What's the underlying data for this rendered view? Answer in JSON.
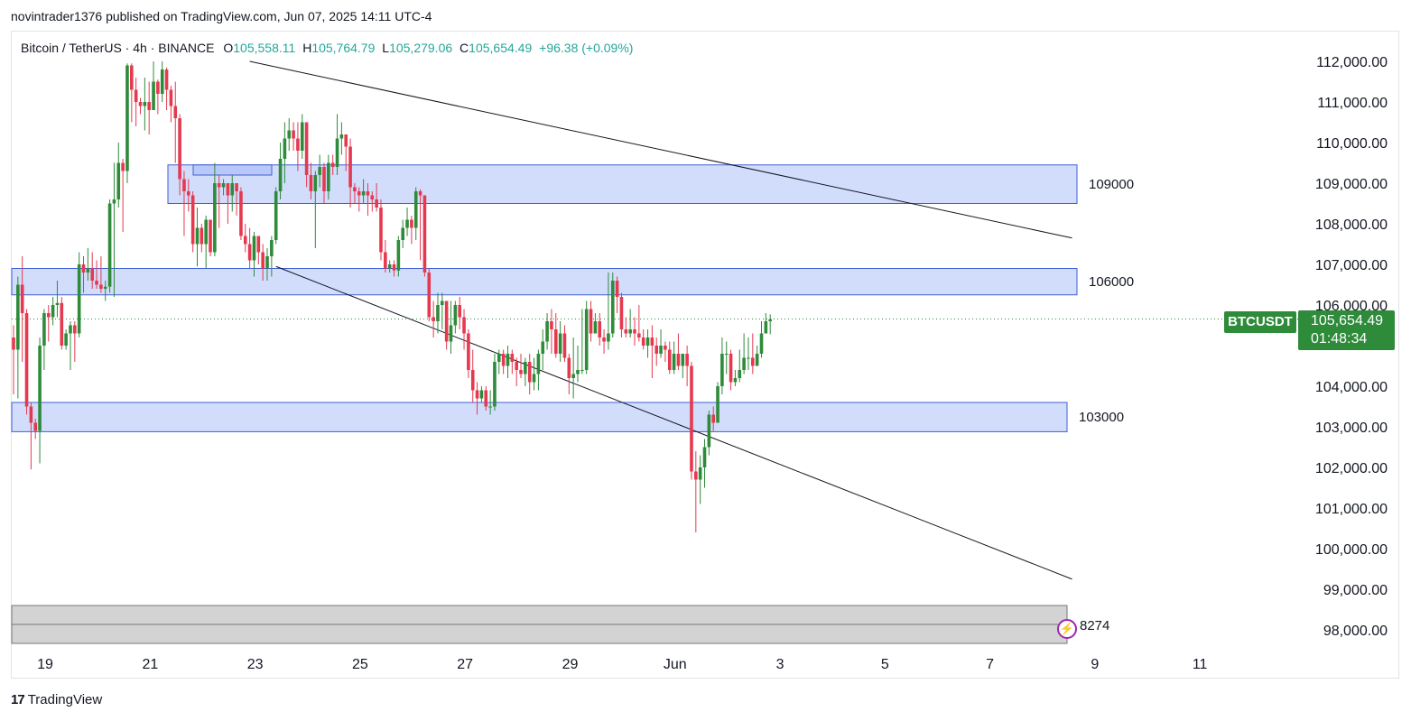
{
  "header": {
    "published_line": "novintrader1376 published on TradingView.com, Jun 07, 2025 14:11 UTC-4"
  },
  "symbol_bar": {
    "title": "Bitcoin / TetherUS · 4h · BINANCE",
    "open_label": "O",
    "open": "105,558.11",
    "high_label": "H",
    "high": "105,764.79",
    "low_label": "L",
    "low": "105,279.06",
    "close_label": "C",
    "close": "105,654.49",
    "change": "+96.38 (+0.09%)"
  },
  "last_price": {
    "symbol": "BTCUSDT",
    "price": "105,654.49",
    "countdown": "01:48:34"
  },
  "footer": {
    "logo_text": "TradingView"
  },
  "colors": {
    "up": "#2e8b3a",
    "down": "#e53950",
    "zone_fill": "#d2ddfc",
    "zone_border": "#3f5fd6",
    "gray_zone": "#d3d3d3",
    "last_price_line": "#2e8b3a"
  },
  "chart_data": {
    "type": "candlestick",
    "title": "Bitcoin / TetherUS · 4h · BINANCE",
    "y_axis": {
      "ticks": [
        "112,000.00",
        "111,000.00",
        "110,000.00",
        "109,000.00",
        "108,000.00",
        "107,000.00",
        "106,000.00",
        "104,000.00",
        "103,000.00",
        "102,000.00",
        "101,000.00",
        "100,000.00",
        "99,000.00",
        "98,000.00"
      ],
      "tick_values": [
        112000,
        111000,
        110000,
        109000,
        108000,
        107000,
        106000,
        104000,
        103000,
        102000,
        101000,
        100000,
        99000,
        98000
      ],
      "ylim": [
        97700,
        112200
      ]
    },
    "x_axis": {
      "ticks": [
        "19",
        "21",
        "23",
        "25",
        "27",
        "29",
        "Jun",
        "3",
        "5",
        "7",
        "9",
        "11"
      ],
      "tick_index": [
        6,
        30,
        54,
        78,
        102,
        126,
        150,
        174,
        198,
        222,
        246,
        270
      ]
    },
    "zones": [
      {
        "label": "109000",
        "from": 108500,
        "to": 109450
      },
      {
        "label": "106000",
        "from": 106250,
        "to": 106900
      },
      {
        "label": "103000",
        "from": 102880,
        "to": 103600
      }
    ],
    "small_zone": {
      "from": 109200,
      "to": 109450
    },
    "gray_zone": {
      "label": "8274",
      "from": 97700,
      "to": 98650
    },
    "trendlines": [
      {
        "from": [
          112000,
          54
        ],
        "to": [
          107650,
          242
        ]
      },
      {
        "from": [
          106950,
          60
        ],
        "to": [
          99250,
          242
        ]
      }
    ],
    "candles": [
      [
        105200,
        104900,
        105500,
        103800
      ],
      [
        104900,
        106500,
        106700,
        103700
      ],
      [
        106500,
        105800,
        107200,
        104600
      ],
      [
        105800,
        103500,
        105900,
        103300
      ],
      [
        103500,
        103100,
        103600,
        101950
      ],
      [
        103100,
        102900,
        103200,
        102700
      ],
      [
        102900,
        105000,
        105200,
        102100
      ],
      [
        105000,
        105800,
        105900,
        104400
      ],
      [
        105800,
        105700,
        106000,
        105100
      ],
      [
        105700,
        106000,
        106200,
        105500
      ],
      [
        106000,
        106050,
        106600,
        105700
      ],
      [
        106050,
        105000,
        106200,
        104900
      ],
      [
        105000,
        105300,
        105400,
        104900
      ],
      [
        105300,
        105500,
        105600,
        104400
      ],
      [
        105500,
        105300,
        105600,
        104600
      ],
      [
        105300,
        107000,
        107300,
        105200
      ],
      [
        107000,
        106800,
        107200,
        106300
      ],
      [
        106800,
        106900,
        107400,
        106600
      ],
      [
        106900,
        106600,
        107300,
        106400
      ],
      [
        106600,
        106500,
        107100,
        106400
      ],
      [
        106500,
        106400,
        107200,
        106300
      ],
      [
        106400,
        106450,
        106600,
        106100
      ],
      [
        106450,
        108500,
        108600,
        106300
      ],
      [
        108500,
        108600,
        109500,
        106200
      ],
      [
        108600,
        109500,
        110000,
        108400
      ],
      [
        109500,
        109300,
        109600,
        107800
      ],
      [
        109300,
        111900,
        111950,
        109000
      ],
      [
        111900,
        111300,
        111950,
        110500
      ],
      [
        111300,
        111000,
        111600,
        110400
      ],
      [
        111000,
        110900,
        111100,
        110700
      ],
      [
        110900,
        111000,
        111600,
        110300
      ],
      [
        111000,
        110800,
        111500,
        110200
      ],
      [
        110800,
        111500,
        112000,
        111200
      ],
      [
        111500,
        111200,
        111550,
        110700
      ],
      [
        111200,
        111800,
        112000,
        111000
      ],
      [
        111800,
        111300,
        111850,
        110800
      ],
      [
        111300,
        110900,
        111400,
        110500
      ],
      [
        110900,
        110600,
        111500,
        109500
      ],
      [
        110600,
        109100,
        110700,
        108700
      ],
      [
        109100,
        108800,
        109300,
        107700
      ],
      [
        108800,
        108700,
        109100,
        108300
      ],
      [
        108700,
        107500,
        108800,
        107300
      ],
      [
        107500,
        107900,
        108400,
        106950
      ],
      [
        107900,
        107500,
        108000,
        107300
      ],
      [
        107500,
        108100,
        108200,
        106900
      ],
      [
        108100,
        107300,
        108100,
        107200
      ],
      [
        107300,
        109000,
        109500,
        107200
      ],
      [
        109000,
        108900,
        109200,
        107900
      ],
      [
        108900,
        109000,
        109100,
        108700
      ],
      [
        109000,
        108700,
        109000,
        108000
      ],
      [
        108700,
        109000,
        109200,
        108300
      ],
      [
        109000,
        108800,
        109000,
        108200
      ],
      [
        108800,
        107700,
        108900,
        107600
      ],
      [
        107700,
        107500,
        108000,
        107300
      ],
      [
        107500,
        107100,
        107900,
        106900
      ],
      [
        107100,
        107700,
        107800,
        106700
      ],
      [
        107700,
        107300,
        107700,
        107000
      ],
      [
        107300,
        106900,
        107500,
        106600
      ],
      [
        106900,
        107200,
        107400,
        106600
      ],
      [
        107200,
        107600,
        107700,
        106700
      ],
      [
        107600,
        108800,
        108900,
        107500
      ],
      [
        108800,
        109600,
        110000,
        108600
      ],
      [
        109600,
        110100,
        110500,
        109000
      ],
      [
        110100,
        110300,
        110600,
        109800
      ],
      [
        110300,
        110100,
        110500,
        109800
      ],
      [
        110100,
        109800,
        110500,
        109300
      ],
      [
        109800,
        110500,
        110700,
        109600
      ],
      [
        110500,
        109200,
        110500,
        108900
      ],
      [
        109200,
        108800,
        109500,
        108600
      ],
      [
        108800,
        109200,
        109300,
        107400
      ],
      [
        109200,
        109400,
        109700,
        108900
      ],
      [
        109400,
        108800,
        109500,
        108500
      ],
      [
        108800,
        109500,
        109700,
        108600
      ],
      [
        109500,
        109400,
        109700,
        109200
      ],
      [
        109400,
        110100,
        110700,
        109200
      ],
      [
        110100,
        110200,
        110500,
        109700
      ],
      [
        110200,
        109900,
        110100,
        109300
      ],
      [
        109900,
        108900,
        110100,
        108400
      ],
      [
        108900,
        108800,
        109000,
        108500
      ],
      [
        108800,
        108700,
        108900,
        108300
      ],
      [
        108700,
        108800,
        109100,
        108500
      ],
      [
        108800,
        108700,
        109000,
        108200
      ],
      [
        108700,
        108600,
        108800,
        108300
      ],
      [
        108600,
        108400,
        109000,
        108300
      ],
      [
        108400,
        107300,
        108600,
        107100
      ],
      [
        107300,
        106900,
        107600,
        106800
      ],
      [
        106900,
        107000,
        107100,
        106800
      ],
      [
        107000,
        106850,
        107100,
        106700
      ],
      [
        106850,
        107600,
        107700,
        106700
      ],
      [
        107600,
        107900,
        108100,
        107400
      ],
      [
        107900,
        108100,
        108400,
        107700
      ],
      [
        108100,
        107900,
        108200,
        107500
      ],
      [
        107900,
        108800,
        108900,
        107600
      ],
      [
        108800,
        108700,
        108850,
        107100
      ],
      [
        108700,
        106800,
        108700,
        106700
      ],
      [
        106800,
        105700,
        106900,
        105600
      ],
      [
        105700,
        105600,
        106100,
        105200
      ],
      [
        105600,
        106000,
        106300,
        105300
      ],
      [
        106000,
        106100,
        106300,
        105400
      ],
      [
        106100,
        105100,
        106100,
        104900
      ],
      [
        105100,
        105500,
        106100,
        104800
      ],
      [
        105500,
        106000,
        106100,
        105300
      ],
      [
        106000,
        105700,
        106200,
        105400
      ],
      [
        105700,
        105300,
        105900,
        104900
      ],
      [
        105300,
        104400,
        105400,
        104200
      ],
      [
        104400,
        103900,
        104900,
        103600
      ],
      [
        103900,
        103700,
        104100,
        103300
      ],
      [
        103700,
        103900,
        104000,
        103600
      ],
      [
        103900,
        103500,
        104000,
        103400
      ],
      [
        103500,
        103500,
        103900,
        103300
      ],
      [
        103500,
        104600,
        104800,
        103400
      ],
      [
        104600,
        104800,
        104900,
        104300
      ],
      [
        104800,
        104500,
        104900,
        104300
      ],
      [
        104500,
        104800,
        105000,
        104200
      ],
      [
        104800,
        104600,
        104900,
        104300
      ],
      [
        104600,
        104400,
        104700,
        104000
      ],
      [
        104400,
        104300,
        104800,
        104200
      ],
      [
        104300,
        104600,
        104700,
        104000
      ],
      [
        104600,
        104100,
        104800,
        103800
      ],
      [
        104100,
        104300,
        104700,
        103900
      ],
      [
        104300,
        104800,
        104900,
        103900
      ],
      [
        104800,
        105100,
        105400,
        104400
      ],
      [
        105100,
        105600,
        105800,
        104900
      ],
      [
        105600,
        105400,
        105900,
        104800
      ],
      [
        105400,
        104800,
        105800,
        104700
      ],
      [
        104800,
        105300,
        105600,
        104600
      ],
      [
        105300,
        104700,
        105500,
        104600
      ],
      [
        104700,
        104200,
        104800,
        103800
      ],
      [
        104200,
        104300,
        105200,
        103700
      ],
      [
        104300,
        104400,
        105000,
        104100
      ],
      [
        104400,
        104400,
        105900,
        104300
      ],
      [
        104400,
        105900,
        106100,
        104300
      ],
      [
        105900,
        105300,
        106100,
        105100
      ],
      [
        105300,
        105600,
        105800,
        105300
      ],
      [
        105600,
        105200,
        105800,
        105000
      ],
      [
        105200,
        105100,
        105400,
        104800
      ],
      [
        105100,
        105300,
        106800,
        104900
      ],
      [
        105300,
        106600,
        106800,
        105200
      ],
      [
        106600,
        106200,
        106700,
        105800
      ],
      [
        106200,
        105400,
        106300,
        105200
      ],
      [
        105400,
        105300,
        105700,
        105200
      ],
      [
        105300,
        105400,
        105900,
        105200
      ],
      [
        105400,
        105300,
        105700,
        105000
      ],
      [
        105300,
        105200,
        106000,
        105100
      ],
      [
        105200,
        105000,
        105400,
        104900
      ],
      [
        105000,
        105200,
        105400,
        104700
      ],
      [
        105200,
        105000,
        105500,
        104200
      ],
      [
        105000,
        104800,
        105200,
        104500
      ],
      [
        104800,
        105000,
        105400,
        104700
      ],
      [
        105000,
        104900,
        105100,
        104600
      ],
      [
        104900,
        104400,
        105100,
        104300
      ],
      [
        104400,
        104800,
        105100,
        104300
      ],
      [
        104800,
        104500,
        105300,
        104400
      ],
      [
        104500,
        104800,
        104800,
        104200
      ],
      [
        104800,
        104500,
        105000,
        104000
      ],
      [
        104500,
        101900,
        104600,
        101700
      ],
      [
        101900,
        101700,
        102400,
        100400
      ],
      [
        101700,
        102000,
        102300,
        101100
      ],
      [
        102000,
        102500,
        102700,
        101500
      ],
      [
        102500,
        103300,
        103400,
        102300
      ],
      [
        103300,
        103100,
        103500,
        102900
      ],
      [
        103100,
        104000,
        104100,
        103500
      ],
      [
        104000,
        104800,
        105200,
        103800
      ],
      [
        104800,
        104800,
        105100,
        104300
      ],
      [
        104800,
        104100,
        104900,
        103900
      ],
      [
        104100,
        104200,
        104400,
        104000
      ],
      [
        104200,
        104400,
        104900,
        104100
      ],
      [
        104400,
        104700,
        105300,
        104300
      ],
      [
        104700,
        104700,
        105200,
        104400
      ],
      [
        104700,
        104500,
        105300,
        104300
      ],
      [
        104500,
        104800,
        105000,
        104500
      ],
      [
        104800,
        105300,
        105600,
        104700
      ],
      [
        105300,
        105600,
        105800,
        105300
      ],
      [
        105600,
        105650,
        105770,
        105280
      ]
    ]
  }
}
